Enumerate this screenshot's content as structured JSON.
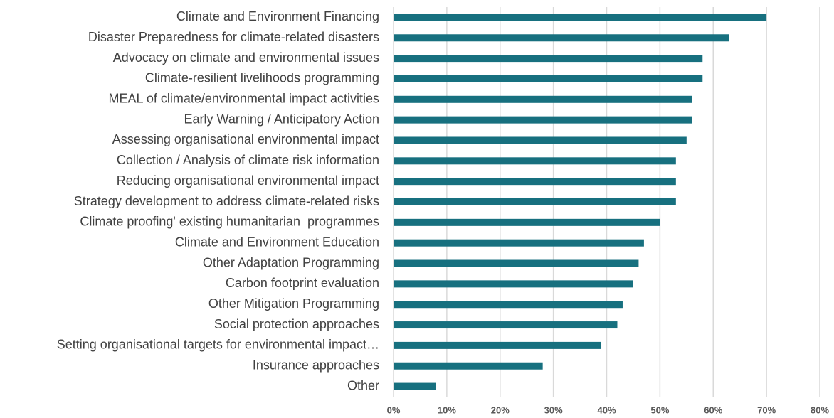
{
  "chart_data": {
    "type": "bar",
    "orientation": "horizontal",
    "categories": [
      "Climate and Environment Financing",
      "Disaster Preparedness for climate-related disasters",
      "Advocacy on climate and environmental issues",
      "Climate-resilient livelihoods programming",
      "MEAL of climate/environmental impact activities",
      "Early Warning / Anticipatory Action",
      "Assessing organisational environmental impact",
      "Collection / Analysis of climate risk information",
      "Reducing organisational environmental impact",
      "Strategy development to address climate-related risks",
      "Climate proofing' existing humanitarian  programmes",
      "Climate and Environment Education",
      "Other Adaptation Programming",
      "Carbon footprint evaluation",
      "Other Mitigation Programming",
      "Social protection approaches",
      "Setting organisational targets for environmental impact…",
      "Insurance approaches",
      "Other"
    ],
    "values": [
      70,
      63,
      58,
      58,
      56,
      56,
      55,
      53,
      53,
      53,
      50,
      47,
      46,
      45,
      43,
      42,
      39,
      28,
      8
    ],
    "color": "#17707f",
    "xlim": [
      0,
      80
    ],
    "xticks": [
      {
        "value": 0,
        "label": "0%"
      },
      {
        "value": 10,
        "label": "10%"
      },
      {
        "value": 20,
        "label": "20%"
      },
      {
        "value": 30,
        "label": "30%"
      },
      {
        "value": 40,
        "label": "40%"
      },
      {
        "value": 50,
        "label": "50%"
      },
      {
        "value": 60,
        "label": "60%"
      },
      {
        "value": 70,
        "label": "70%"
      },
      {
        "value": 80,
        "label": "80%"
      }
    ],
    "grid": true
  }
}
